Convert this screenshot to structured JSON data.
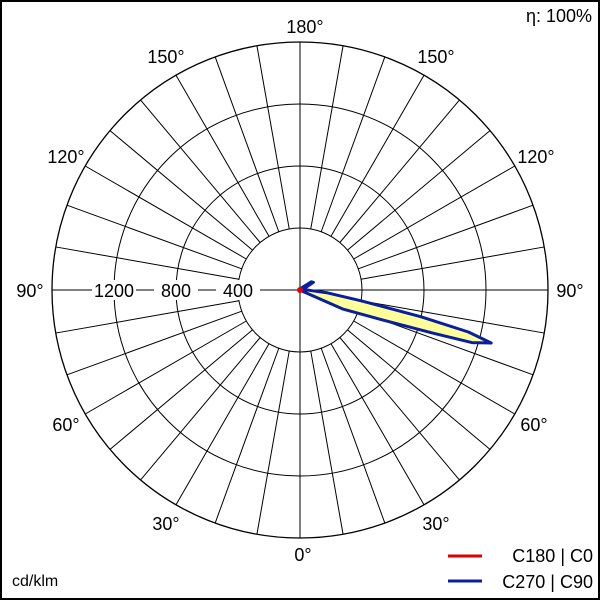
{
  "chart_data": {
    "type": "polar",
    "efficiency_label": "η: 100%",
    "unit_label": "cd/klm",
    "angle_labels": {
      "top": "180°",
      "upper": "150°",
      "mid_upper": "120°",
      "side": "90°",
      "mid_lower": "60°",
      "lower": "30°",
      "bottom": "0°"
    },
    "radial_ticks": [
      "400",
      "800",
      "1200"
    ],
    "radial_max": 1600,
    "grid": true,
    "legend_position": "bottom-right",
    "series": [
      {
        "name": "C180 | C0",
        "color": "#e00000",
        "points": [
          [
            0,
            0
          ],
          [
            45,
            0
          ],
          [
            90,
            5
          ],
          [
            135,
            0
          ],
          [
            180,
            0
          ]
        ]
      },
      {
        "name": "C270 | C90",
        "color": "#0a1ea0",
        "fill": "#ffff99",
        "points": [
          [
            0,
            0
          ],
          [
            60,
            10
          ],
          [
            66,
            300
          ],
          [
            70,
            560
          ],
          [
            72,
            900
          ],
          [
            73,
            1160
          ],
          [
            74.5,
            1280
          ],
          [
            76,
            1120
          ],
          [
            77.5,
            800
          ],
          [
            80,
            400
          ],
          [
            84,
            180
          ],
          [
            88,
            60
          ],
          [
            92,
            30
          ],
          [
            110,
            30
          ],
          [
            120,
            100
          ],
          [
            126,
            90
          ],
          [
            140,
            20
          ],
          [
            180,
            0
          ]
        ]
      }
    ]
  }
}
